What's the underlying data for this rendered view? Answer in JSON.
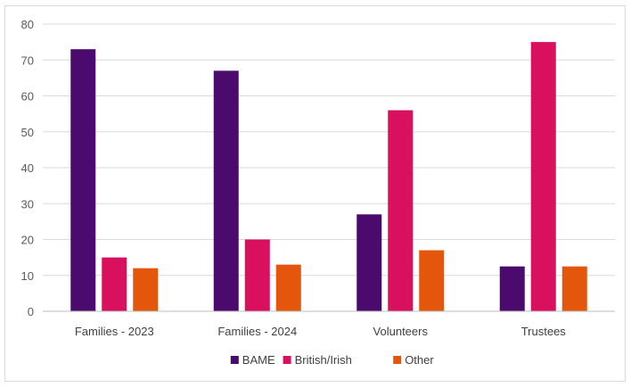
{
  "chart_data": {
    "type": "bar",
    "title": "",
    "xlabel": "",
    "ylabel": "",
    "categories": [
      "Families - 2023",
      "Families - 2024",
      "Volunteers",
      "Trustees"
    ],
    "series": [
      {
        "name": "BAME",
        "color": "#4b0a6e",
        "values": [
          73,
          67,
          27,
          12.5
        ]
      },
      {
        "name": "British/Irish",
        "color": "#d9105e",
        "values": [
          15,
          20,
          56,
          75
        ]
      },
      {
        "name": "Other",
        "color": "#e3560b",
        "values": [
          12,
          13,
          17,
          12.5
        ]
      }
    ],
    "ylim": [
      0,
      80
    ],
    "yticks": [
      "0",
      "10",
      "20",
      "30",
      "40",
      "50",
      "60",
      "70",
      "80"
    ],
    "grid": true,
    "legend_position": "bottom"
  }
}
